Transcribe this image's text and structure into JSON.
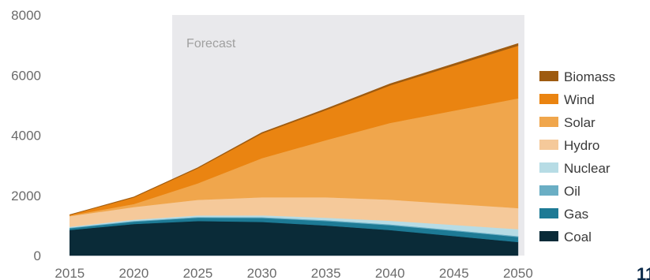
{
  "chart_data": {
    "type": "area",
    "stacked": true,
    "title": "",
    "xlabel": "",
    "ylabel": "",
    "x": [
      2015,
      2020,
      2025,
      2030,
      2035,
      2040,
      2045,
      2050
    ],
    "xlim": [
      2013.5,
      2050.5
    ],
    "ylim": [
      0,
      8000
    ],
    "x_ticks": [
      "2015",
      "2020",
      "2025",
      "2030",
      "2035",
      "2040",
      "2045",
      "2050"
    ],
    "y_ticks": [
      "0",
      "2000",
      "4000",
      "6000",
      "8000"
    ],
    "grid": false,
    "legend_position": "right",
    "forecast": {
      "label": "Forecast",
      "start": 2023,
      "end": 2050.5,
      "color": "#e9e9ec"
    },
    "series": [
      {
        "name": "Coal",
        "color": "#0a2b38",
        "values": [
          850,
          1050,
          1150,
          1120,
          1000,
          850,
          650,
          450
        ]
      },
      {
        "name": "Gas",
        "color": "#1d7a95",
        "values": [
          60,
          80,
          110,
          130,
          150,
          160,
          170,
          170
        ]
      },
      {
        "name": "Oil",
        "color": "#6aaec4",
        "values": [
          20,
          25,
          25,
          30,
          30,
          30,
          30,
          30
        ]
      },
      {
        "name": "Nuclear",
        "color": "#b7dce5",
        "values": [
          30,
          40,
          50,
          60,
          80,
          120,
          170,
          230
        ]
      },
      {
        "name": "Hydro",
        "color": "#f5c99a",
        "values": [
          350,
          420,
          520,
          600,
          680,
          700,
          700,
          700
        ]
      },
      {
        "name": "Solar",
        "color": "#f0a64c",
        "values": [
          20,
          100,
          550,
          1300,
          1900,
          2550,
          3100,
          3650
        ]
      },
      {
        "name": "Wind",
        "color": "#ea8411",
        "values": [
          20,
          220,
          500,
          820,
          1000,
          1250,
          1500,
          1750
        ]
      },
      {
        "name": "Biomass",
        "color": "#9e5b10",
        "values": [
          10,
          15,
          20,
          30,
          40,
          50,
          60,
          70
        ]
      }
    ]
  },
  "legend_order": [
    "Biomass",
    "Wind",
    "Solar",
    "Hydro",
    "Nuclear",
    "Oil",
    "Gas",
    "Coal"
  ],
  "corner_mark": "11"
}
